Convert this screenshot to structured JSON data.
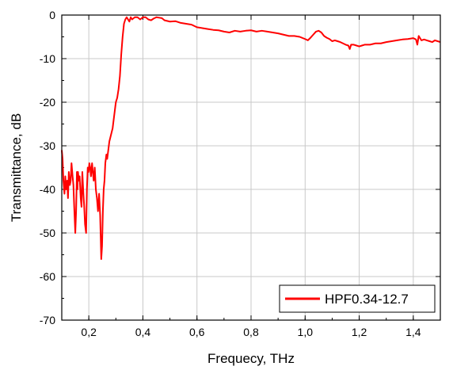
{
  "chart_data": {
    "type": "line",
    "title": "",
    "xlabel": "Frequecy, THz",
    "ylabel": "Transmittance, dB",
    "xlim": [
      0.1,
      1.5
    ],
    "ylim": [
      -70,
      0
    ],
    "x_ticks": [
      0.2,
      0.4,
      0.6,
      0.8,
      1.0,
      1.2,
      1.4
    ],
    "x_tick_labels": [
      "0,2",
      "0,4",
      "0,6",
      "0,8",
      "1,0",
      "1,2",
      "1,4"
    ],
    "y_ticks": [
      0,
      -10,
      -20,
      -30,
      -40,
      -50,
      -60,
      -70
    ],
    "y_tick_labels": [
      "0",
      "-10",
      "-20",
      "-30",
      "-40",
      "-50",
      "-60",
      "-70"
    ],
    "grid": true,
    "legend_position": "bottom-right",
    "series": [
      {
        "name": "HPF0.34-12.7",
        "color": "#ff0000",
        "x": [
          0.1,
          0.103,
          0.106,
          0.11,
          0.113,
          0.116,
          0.12,
          0.123,
          0.126,
          0.13,
          0.133,
          0.136,
          0.14,
          0.143,
          0.146,
          0.15,
          0.153,
          0.156,
          0.158,
          0.16,
          0.163,
          0.166,
          0.17,
          0.173,
          0.176,
          0.18,
          0.183,
          0.186,
          0.19,
          0.193,
          0.196,
          0.199,
          0.202,
          0.205,
          0.208,
          0.212,
          0.215,
          0.218,
          0.222,
          0.226,
          0.23,
          0.234,
          0.238,
          0.242,
          0.246,
          0.249,
          0.252,
          0.255,
          0.258,
          0.261,
          0.265,
          0.268,
          0.272,
          0.276,
          0.28,
          0.284,
          0.288,
          0.292,
          0.296,
          0.3,
          0.305,
          0.31,
          0.315,
          0.32,
          0.325,
          0.33,
          0.335,
          0.34,
          0.345,
          0.35,
          0.355,
          0.36,
          0.37,
          0.38,
          0.39,
          0.4,
          0.41,
          0.42,
          0.43,
          0.44,
          0.45,
          0.46,
          0.47,
          0.48,
          0.5,
          0.52,
          0.54,
          0.56,
          0.58,
          0.6,
          0.62,
          0.64,
          0.66,
          0.68,
          0.7,
          0.72,
          0.74,
          0.76,
          0.78,
          0.8,
          0.82,
          0.84,
          0.86,
          0.88,
          0.9,
          0.92,
          0.94,
          0.96,
          0.98,
          1.0,
          1.01,
          1.02,
          1.03,
          1.04,
          1.05,
          1.06,
          1.07,
          1.08,
          1.09,
          1.1,
          1.11,
          1.12,
          1.13,
          1.14,
          1.15,
          1.16,
          1.165,
          1.17,
          1.18,
          1.19,
          1.2,
          1.21,
          1.22,
          1.24,
          1.26,
          1.28,
          1.3,
          1.32,
          1.34,
          1.36,
          1.38,
          1.4,
          1.41,
          1.415,
          1.42,
          1.43,
          1.44,
          1.45,
          1.46,
          1.47,
          1.48,
          1.49,
          1.5
        ],
        "y": [
          -31,
          -33,
          -38,
          -41,
          -37,
          -40,
          -38,
          -42,
          -36,
          -39,
          -38,
          -34,
          -37,
          -39,
          -44,
          -50,
          -45,
          -36,
          -40,
          -36,
          -38,
          -37,
          -42,
          -44,
          -36,
          -41,
          -44,
          -48,
          -50,
          -40,
          -35,
          -36,
          -34,
          -35,
          -37,
          -34,
          -36,
          -38,
          -35,
          -40,
          -42,
          -45,
          -41,
          -46,
          -56,
          -53,
          -45,
          -40,
          -38,
          -34,
          -32,
          -33,
          -31,
          -29,
          -28,
          -27,
          -26,
          -24,
          -22,
          -20,
          -19,
          -17,
          -14,
          -9,
          -5,
          -2,
          -1,
          -0.5,
          -1,
          -1.5,
          -0.5,
          -1,
          -0.5,
          -0.5,
          -1,
          -0.5,
          -0.5,
          -1,
          -1.2,
          -0.8,
          -0.5,
          -0.6,
          -0.7,
          -1.2,
          -1.5,
          -1.4,
          -1.8,
          -2.0,
          -2.2,
          -2.8,
          -3.0,
          -3.2,
          -3.4,
          -3.5,
          -3.8,
          -4.0,
          -3.6,
          -3.8,
          -3.6,
          -3.5,
          -3.8,
          -3.6,
          -3.8,
          -4.0,
          -4.2,
          -4.5,
          -4.8,
          -4.8,
          -5.0,
          -5.5,
          -5.8,
          -5.2,
          -4.5,
          -3.8,
          -3.6,
          -4.0,
          -4.8,
          -5.2,
          -5.5,
          -6.0,
          -5.8,
          -6.0,
          -6.2,
          -6.5,
          -6.8,
          -7.0,
          -7.8,
          -6.8,
          -6.8,
          -7.0,
          -7.2,
          -7.0,
          -6.8,
          -6.8,
          -6.5,
          -6.5,
          -6.2,
          -6.0,
          -5.8,
          -5.6,
          -5.5,
          -5.3,
          -5.6,
          -6.8,
          -4.8,
          -5.8,
          -5.6,
          -5.8,
          -6.0,
          -6.2,
          -5.8,
          -6.0,
          -6.2
        ]
      }
    ]
  }
}
